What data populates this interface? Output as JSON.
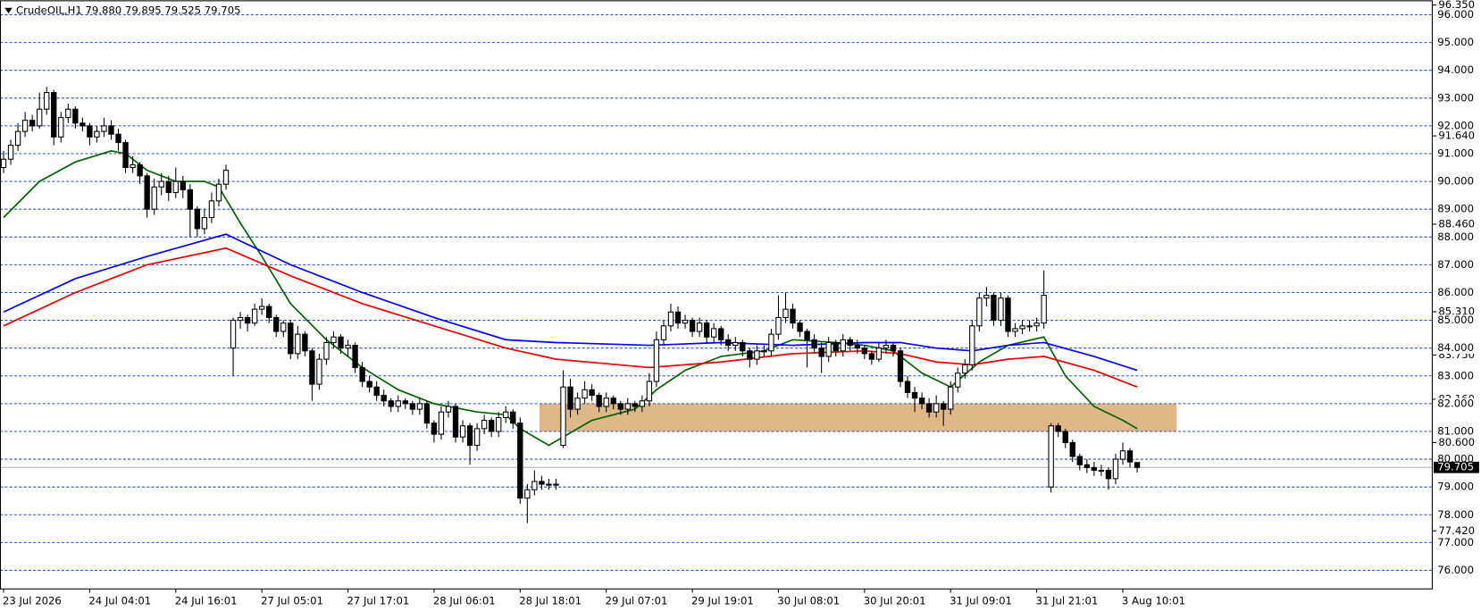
{
  "chart_data": {
    "type": "candlestick",
    "title": "CrudeOIL,H1  79.880 79.895 79.525 79.705",
    "xlim": [
      -0.5,
      199.2
    ],
    "ylim": [
      75.33,
      96.35
    ],
    "xticks": [
      {
        "value": 0,
        "label": "23 Jul 2026"
      },
      {
        "value": 12,
        "label": "24 Jul 04:01"
      },
      {
        "value": 24,
        "label": "24 Jul 16:01"
      },
      {
        "value": 36,
        "label": "27 Jul 05:01"
      },
      {
        "value": 48,
        "label": "27 Jul 17:01"
      },
      {
        "value": 60,
        "label": "28 Jul 06:01"
      },
      {
        "value": 72,
        "label": "28 Jul 18:01"
      },
      {
        "value": 84,
        "label": "29 Jul 07:01"
      },
      {
        "value": 96,
        "label": "29 Jul 19:01"
      },
      {
        "value": 108,
        "label": "30 Jul 08:01"
      },
      {
        "value": 120,
        "label": "30 Jul 20:01"
      },
      {
        "value": 132,
        "label": "31 Jul 09:01"
      },
      {
        "value": 144,
        "label": "31 Jul 21:01"
      },
      {
        "value": 156,
        "label": "3 Aug 10:01"
      }
    ],
    "yticks": [
      {
        "value": 96.35,
        "label": "96.350"
      },
      {
        "value": 91.64,
        "label": "91.640"
      },
      {
        "value": 88.46,
        "label": "88.460"
      },
      {
        "value": 85.31,
        "label": "85.310"
      },
      {
        "value": 83.75,
        "label": "83.750"
      },
      {
        "value": 82.16,
        "label": "82.160"
      },
      {
        "value": 80.6,
        "label": "80.600"
      },
      {
        "value": 77.42,
        "label": "77.420"
      }
    ],
    "hlines": [
      {
        "value": 96,
        "label": "96.000"
      },
      {
        "value": 95,
        "label": "95.000"
      },
      {
        "value": 94,
        "label": "94.000"
      },
      {
        "value": 93,
        "label": "93.000"
      },
      {
        "value": 92,
        "label": "92.000"
      },
      {
        "value": 91,
        "label": "91.000"
      },
      {
        "value": 90,
        "label": "90.000"
      },
      {
        "value": 89,
        "label": "89.000"
      },
      {
        "value": 88,
        "label": "88.000"
      },
      {
        "value": 87,
        "label": "87.000"
      },
      {
        "value": 86,
        "label": "86.000"
      },
      {
        "value": 85,
        "label": "85.000"
      },
      {
        "value": 84,
        "label": "84.000"
      },
      {
        "value": 83,
        "label": "83.000"
      },
      {
        "value": 82,
        "label": "82.000"
      },
      {
        "value": 81,
        "label": "81.000"
      },
      {
        "value": 80,
        "label": "80.000"
      },
      {
        "value": 79,
        "label": "79.000"
      },
      {
        "value": 78,
        "label": "78.000"
      },
      {
        "value": 77,
        "label": "77.000"
      },
      {
        "value": 76,
        "label": "76.000"
      }
    ],
    "hline_color": "#2b55c8",
    "last_price": 79.705,
    "up_color": "#ffffff",
    "down_color": "#000000",
    "zones": [
      {
        "x0": 74.7,
        "x1": 163.5,
        "y0": 81.0,
        "y1": 82.0,
        "color": "#deb887"
      }
    ],
    "ohlc": [
      [
        90.5,
        91.1,
        90.3,
        90.8
      ],
      [
        90.8,
        91.5,
        90.6,
        91.3
      ],
      [
        91.3,
        92.1,
        91.1,
        91.8
      ],
      [
        91.8,
        92.5,
        91.6,
        92.2
      ],
      [
        92.2,
        92.4,
        91.8,
        92.0
      ],
      [
        92.0,
        93.2,
        91.9,
        92.6
      ],
      [
        92.6,
        93.4,
        92.4,
        93.2
      ],
      [
        93.2,
        93.3,
        91.3,
        91.6
      ],
      [
        91.6,
        92.5,
        91.4,
        92.3
      ],
      [
        92.3,
        92.8,
        92.1,
        92.6
      ],
      [
        92.6,
        92.7,
        91.9,
        92.1
      ],
      [
        92.1,
        92.3,
        91.8,
        92.0
      ],
      [
        92.0,
        92.1,
        91.3,
        91.6
      ],
      [
        91.6,
        92.0,
        91.4,
        91.8
      ],
      [
        91.8,
        92.3,
        91.6,
        92.0
      ],
      [
        92.0,
        92.2,
        91.5,
        91.7
      ],
      [
        91.7,
        91.9,
        91.1,
        91.4
      ],
      [
        91.4,
        91.5,
        90.3,
        90.5
      ],
      [
        90.5,
        90.9,
        90.3,
        90.6
      ],
      [
        90.6,
        90.7,
        89.9,
        90.2
      ],
      [
        90.2,
        90.3,
        88.7,
        89.0
      ],
      [
        89.0,
        90.1,
        88.8,
        89.8
      ],
      [
        89.8,
        90.3,
        89.5,
        90.0
      ],
      [
        90.0,
        90.2,
        89.3,
        89.6
      ],
      [
        89.6,
        90.5,
        89.4,
        90.0
      ],
      [
        90.0,
        90.2,
        89.4,
        89.7
      ],
      [
        89.7,
        89.9,
        88.0,
        89.0
      ],
      [
        89.0,
        89.1,
        88.0,
        88.3
      ],
      [
        88.3,
        89.0,
        88.1,
        88.7
      ],
      [
        88.7,
        89.6,
        88.5,
        89.3
      ],
      [
        89.3,
        90.1,
        89.1,
        89.9
      ],
      [
        89.9,
        90.6,
        89.7,
        90.4
      ],
      [
        84.0,
        85.1,
        83.0,
        85.0
      ],
      [
        85.0,
        85.3,
        84.7,
        85.1
      ],
      [
        85.1,
        85.2,
        84.6,
        84.9
      ],
      [
        84.9,
        85.6,
        84.8,
        85.4
      ],
      [
        85.4,
        85.8,
        85.2,
        85.5
      ],
      [
        85.5,
        85.6,
        84.9,
        85.1
      ],
      [
        85.1,
        85.2,
        84.4,
        84.6
      ],
      [
        84.6,
        85.0,
        84.4,
        84.9
      ],
      [
        84.9,
        85.0,
        83.6,
        83.8
      ],
      [
        83.8,
        84.8,
        83.6,
        84.5
      ],
      [
        84.5,
        84.6,
        83.7,
        83.9
      ],
      [
        83.9,
        84.0,
        82.1,
        82.7
      ],
      [
        82.7,
        83.8,
        82.5,
        83.6
      ],
      [
        83.6,
        84.4,
        83.4,
        84.2
      ],
      [
        84.2,
        84.6,
        84.0,
        84.4
      ],
      [
        84.4,
        84.5,
        83.8,
        84.0
      ],
      [
        84.0,
        84.3,
        83.7,
        84.1
      ],
      [
        84.1,
        84.2,
        83.1,
        83.3
      ],
      [
        83.3,
        83.5,
        82.6,
        82.8
      ],
      [
        82.8,
        83.0,
        82.4,
        82.6
      ],
      [
        82.6,
        82.8,
        82.1,
        82.3
      ],
      [
        82.3,
        82.5,
        81.9,
        82.1
      ],
      [
        82.1,
        82.2,
        81.7,
        81.9
      ],
      [
        81.9,
        82.3,
        81.7,
        82.1
      ],
      [
        82.1,
        82.2,
        81.8,
        82.0
      ],
      [
        82.0,
        82.1,
        81.6,
        81.8
      ],
      [
        81.8,
        82.2,
        81.6,
        82.0
      ],
      [
        82.0,
        82.1,
        81.1,
        81.3
      ],
      [
        81.3,
        81.4,
        80.6,
        80.9
      ],
      [
        80.9,
        81.9,
        80.7,
        81.7
      ],
      [
        81.7,
        82.1,
        81.5,
        81.9
      ],
      [
        81.9,
        82.0,
        80.6,
        80.8
      ],
      [
        80.8,
        81.4,
        80.6,
        81.2
      ],
      [
        81.2,
        81.3,
        79.8,
        80.5
      ],
      [
        80.5,
        81.3,
        80.3,
        81.1
      ],
      [
        81.1,
        81.6,
        80.9,
        81.4
      ],
      [
        81.4,
        81.5,
        80.8,
        81.0
      ],
      [
        81.0,
        81.7,
        80.8,
        81.5
      ],
      [
        81.5,
        81.9,
        81.3,
        81.7
      ],
      [
        81.7,
        81.8,
        81.1,
        81.3
      ],
      [
        81.3,
        81.5,
        78.4,
        78.6
      ],
      [
        78.6,
        79.1,
        77.7,
        78.9
      ],
      [
        78.9,
        79.6,
        78.7,
        79.2
      ],
      [
        79.2,
        79.4,
        78.9,
        79.1
      ],
      [
        79.1,
        79.3,
        78.9,
        79.1
      ],
      [
        79.1,
        79.3,
        78.9,
        79.1
      ],
      [
        80.5,
        83.2,
        80.4,
        82.6
      ],
      [
        82.6,
        82.9,
        81.5,
        81.8
      ],
      [
        81.8,
        82.4,
        81.6,
        82.2
      ],
      [
        82.2,
        82.8,
        82.0,
        82.5
      ],
      [
        82.5,
        82.7,
        82.1,
        82.3
      ],
      [
        82.3,
        82.4,
        81.7,
        81.9
      ],
      [
        81.9,
        82.4,
        81.7,
        82.2
      ],
      [
        82.2,
        82.3,
        81.8,
        82.0
      ],
      [
        82.0,
        82.1,
        81.6,
        81.8
      ],
      [
        81.8,
        82.2,
        81.6,
        82.0
      ],
      [
        82.0,
        82.1,
        81.7,
        81.9
      ],
      [
        81.9,
        82.3,
        81.7,
        82.1
      ],
      [
        82.1,
        83.1,
        81.9,
        82.8
      ],
      [
        82.8,
        84.6,
        82.6,
        84.3
      ],
      [
        84.3,
        85.0,
        84.1,
        84.8
      ],
      [
        84.8,
        85.6,
        84.6,
        85.3
      ],
      [
        85.3,
        85.5,
        84.7,
        84.9
      ],
      [
        84.9,
        85.2,
        84.7,
        85.0
      ],
      [
        85.0,
        85.1,
        84.4,
        84.6
      ],
      [
        84.6,
        85.1,
        84.4,
        84.9
      ],
      [
        84.9,
        85.0,
        84.2,
        84.4
      ],
      [
        84.4,
        84.9,
        84.2,
        84.7
      ],
      [
        84.7,
        84.8,
        84.1,
        84.3
      ],
      [
        84.3,
        84.5,
        83.9,
        84.1
      ],
      [
        84.1,
        84.4,
        83.9,
        84.2
      ],
      [
        84.2,
        84.3,
        83.7,
        83.9
      ],
      [
        83.9,
        84.0,
        83.3,
        83.6
      ],
      [
        83.6,
        84.1,
        83.4,
        83.9
      ],
      [
        83.9,
        84.1,
        83.7,
        83.9
      ],
      [
        83.9,
        84.7,
        83.7,
        84.5
      ],
      [
        84.5,
        85.9,
        84.3,
        85.1
      ],
      [
        85.1,
        86.0,
        84.9,
        85.4
      ],
      [
        85.4,
        85.6,
        84.7,
        84.9
      ],
      [
        84.9,
        85.0,
        84.4,
        84.6
      ],
      [
        84.6,
        84.7,
        83.3,
        84.3
      ],
      [
        84.3,
        84.5,
        83.8,
        84.0
      ],
      [
        84.0,
        84.2,
        83.1,
        83.7
      ],
      [
        83.7,
        84.4,
        83.5,
        84.2
      ],
      [
        84.2,
        84.3,
        83.7,
        83.9
      ],
      [
        83.9,
        84.5,
        83.7,
        84.3
      ],
      [
        84.3,
        84.4,
        83.9,
        84.1
      ],
      [
        84.1,
        84.3,
        83.8,
        84.0
      ],
      [
        84.0,
        84.1,
        83.6,
        83.8
      ],
      [
        83.8,
        83.9,
        83.4,
        83.6
      ],
      [
        83.6,
        84.2,
        83.5,
        84.0
      ],
      [
        84.0,
        84.3,
        83.8,
        84.1
      ],
      [
        84.1,
        84.2,
        83.7,
        83.9
      ],
      [
        83.9,
        84.0,
        82.6,
        82.8
      ],
      [
        82.8,
        83.0,
        82.2,
        82.4
      ],
      [
        82.4,
        82.6,
        81.7,
        82.2
      ],
      [
        82.2,
        82.4,
        81.8,
        82.0
      ],
      [
        82.0,
        82.2,
        81.5,
        81.7
      ],
      [
        81.7,
        82.3,
        81.5,
        82.0
      ],
      [
        82.0,
        82.1,
        81.2,
        81.8
      ],
      [
        81.8,
        82.8,
        81.6,
        82.6
      ],
      [
        82.6,
        83.3,
        82.4,
        83.1
      ],
      [
        83.1,
        83.6,
        82.9,
        83.4
      ],
      [
        83.4,
        85.0,
        83.2,
        84.8
      ],
      [
        84.8,
        86.0,
        84.6,
        85.8
      ],
      [
        85.8,
        86.2,
        85.5,
        85.9
      ],
      [
        85.9,
        86.0,
        84.8,
        85.0
      ],
      [
        85.0,
        86.0,
        84.8,
        85.8
      ],
      [
        85.8,
        85.9,
        84.4,
        84.6
      ],
      [
        84.6,
        84.9,
        84.4,
        84.7
      ],
      [
        84.7,
        85.0,
        84.5,
        84.8
      ],
      [
        84.8,
        85.0,
        84.6,
        84.8
      ],
      [
        84.8,
        85.1,
        84.6,
        84.9
      ],
      [
        84.9,
        86.8,
        84.7,
        85.9
      ],
      [
        79.0,
        81.3,
        78.8,
        81.2
      ],
      [
        81.2,
        81.3,
        80.8,
        81.0
      ],
      [
        81.0,
        81.1,
        80.4,
        80.6
      ],
      [
        80.6,
        80.7,
        79.9,
        80.1
      ],
      [
        80.1,
        80.2,
        79.6,
        79.8
      ],
      [
        79.8,
        80.0,
        79.5,
        79.7
      ],
      [
        79.7,
        79.9,
        79.4,
        79.6
      ],
      [
        79.6,
        79.8,
        79.4,
        79.6
      ],
      [
        79.6,
        79.7,
        78.9,
        79.3
      ],
      [
        79.3,
        80.2,
        79.1,
        80.0
      ],
      [
        80.0,
        80.6,
        79.8,
        80.3
      ],
      [
        80.3,
        80.4,
        79.7,
        79.9
      ],
      [
        79.88,
        79.895,
        79.525,
        79.705
      ]
    ],
    "series": [
      {
        "color": "#006400",
        "x": [
          0,
          5,
          10,
          15,
          17,
          20,
          24,
          28,
          30,
          33,
          36,
          40,
          45,
          50,
          55,
          60,
          66,
          70,
          72,
          76,
          78,
          82,
          88,
          91,
          95,
          100,
          106,
          110,
          116,
          120,
          124,
          128,
          132,
          136,
          140,
          145,
          148,
          152,
          156,
          158
        ],
        "values": [
          88.7,
          90.0,
          90.7,
          91.1,
          91.0,
          90.4,
          90.0,
          90.0,
          89.8,
          88.5,
          87.3,
          85.6,
          84.3,
          83.3,
          82.5,
          82.0,
          81.7,
          81.6,
          81.1,
          80.5,
          80.8,
          81.4,
          81.8,
          82.5,
          83.2,
          83.7,
          83.9,
          84.3,
          84.2,
          84.1,
          83.9,
          83.1,
          82.6,
          83.5,
          84.1,
          84.4,
          83.0,
          81.9,
          81.4,
          81.1
        ]
      },
      {
        "color": "#0000ff",
        "x": [
          0,
          10,
          20,
          31,
          40,
          50,
          60,
          70,
          77,
          90,
          100,
          110,
          120,
          125,
          130,
          135,
          140,
          145,
          152,
          158
        ],
        "values": [
          85.3,
          86.5,
          87.3,
          88.1,
          87.0,
          86.0,
          85.1,
          84.3,
          84.2,
          84.1,
          84.2,
          84.1,
          84.2,
          84.2,
          84.0,
          83.9,
          84.1,
          84.2,
          83.7,
          83.2
        ]
      },
      {
        "color": "#ee0000",
        "x": [
          0,
          10,
          20,
          31,
          40,
          50,
          60,
          70,
          77,
          90,
          100,
          110,
          120,
          125,
          130,
          135,
          140,
          145,
          152,
          158
        ],
        "values": [
          84.8,
          86.0,
          87.0,
          87.6,
          86.6,
          85.6,
          84.8,
          84.0,
          83.6,
          83.3,
          83.5,
          83.8,
          83.9,
          83.8,
          83.5,
          83.4,
          83.6,
          83.7,
          83.2,
          82.6
        ]
      }
    ]
  }
}
